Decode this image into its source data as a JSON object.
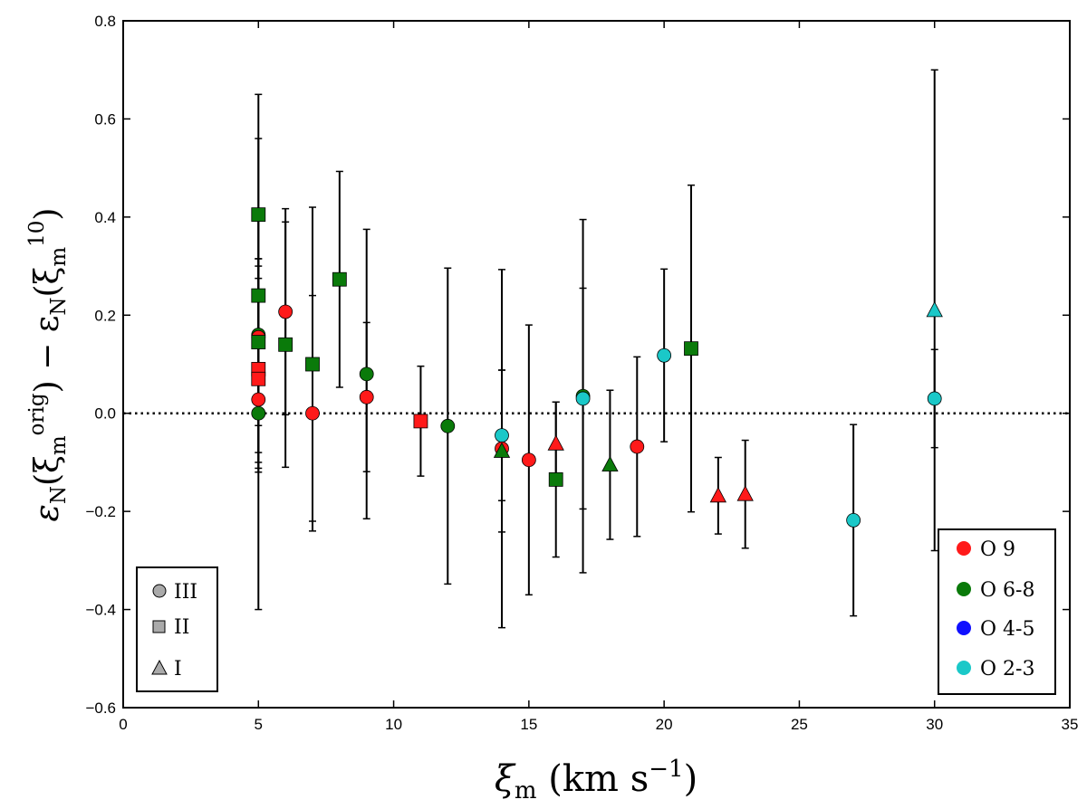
{
  "chart_data": {
    "type": "scatter",
    "title": "",
    "xlabel": {
      "base": "ξ",
      "sub": "m",
      "rest": " (km s",
      "sup": "−1",
      "close": ")"
    },
    "ylabel": {
      "a": "ε",
      "a_sub": "N",
      "b": "(ξ",
      "b_sub": "m",
      "b_sup": "orig",
      "c": ") − ε",
      "c_sub": "N",
      "d": "(ξ",
      "d_sub": "m",
      "d_sup": "10",
      "e": ")"
    },
    "xlim": [
      0,
      35
    ],
    "ylim": [
      -0.6,
      0.8
    ],
    "xticks": [
      0,
      5,
      10,
      15,
      20,
      25,
      30,
      35
    ],
    "yticks": [
      -0.6,
      -0.4,
      -0.2,
      0.0,
      0.2,
      0.4,
      0.6,
      0.8
    ],
    "xtick_labels": [
      "0",
      "5",
      "10",
      "15",
      "20",
      "25",
      "30",
      "35"
    ],
    "ytick_labels": [
      "−0.6",
      "−0.4",
      "−0.2",
      "0.0",
      "0.2",
      "0.4",
      "0.6",
      "0.8"
    ],
    "reference_line": {
      "y": 0.0,
      "style": "dotted"
    },
    "colors": {
      "O 9": "#ff1a1a",
      "O 6-8": "#0a7a0a",
      "O 4-5": "#1010ff",
      "O 2-3": "#1ac8c8"
    },
    "legend_spectral": {
      "position": "bottom-right",
      "entries": [
        "O 9",
        "O 6-8",
        "O 4-5",
        "O 2-3"
      ]
    },
    "legend_luminosity": {
      "position": "bottom-left",
      "entries": [
        {
          "label": "III",
          "marker": "circle"
        },
        {
          "label": "II",
          "marker": "square"
        },
        {
          "label": "I",
          "marker": "triangle"
        }
      ]
    },
    "points": [
      {
        "x": 5,
        "y": 0.405,
        "yerr": 0.245,
        "marker": "square",
        "cls": "O 6-8"
      },
      {
        "x": 5,
        "y": 0.24,
        "yerr": 0.32,
        "marker": "square",
        "cls": "O 6-8"
      },
      {
        "x": 5,
        "y": 0.16,
        "yerr": 0.155,
        "marker": "circle",
        "cls": "O 6-8"
      },
      {
        "x": 5,
        "y": 0.155,
        "yerr": 0.12,
        "marker": "circle",
        "cls": "O 9"
      },
      {
        "x": 5,
        "y": 0.145,
        "yerr": 0.17,
        "marker": "square",
        "cls": "O 6-8"
      },
      {
        "x": 5,
        "y": 0.09,
        "yerr": 0.21,
        "marker": "square",
        "cls": "O 9"
      },
      {
        "x": 5,
        "y": 0.07,
        "yerr": 0.17,
        "marker": "square",
        "cls": "O 9"
      },
      {
        "x": 5,
        "y": 0.028,
        "yerr": 0.14,
        "marker": "circle",
        "cls": "O 9"
      },
      {
        "x": 5,
        "y": 0.0,
        "yerr": 0.4,
        "marker": "circle",
        "cls": "O 6-8"
      },
      {
        "x": 6,
        "y": 0.207,
        "yerr": 0.21,
        "marker": "circle",
        "cls": "O 9"
      },
      {
        "x": 6,
        "y": 0.14,
        "yerr": 0.25,
        "marker": "square",
        "cls": "O 6-8"
      },
      {
        "x": 7,
        "y": 0.1,
        "yerr": 0.32,
        "marker": "square",
        "cls": "O 6-8"
      },
      {
        "x": 7,
        "y": 0.0,
        "yerr": 0.24,
        "marker": "circle",
        "cls": "O 9"
      },
      {
        "x": 8,
        "y": 0.273,
        "yerr": 0.22,
        "marker": "square",
        "cls": "O 6-8"
      },
      {
        "x": 9,
        "y": 0.08,
        "yerr": 0.295,
        "marker": "circle",
        "cls": "O 6-8"
      },
      {
        "x": 9,
        "y": 0.033,
        "yerr": 0.152,
        "marker": "circle",
        "cls": "O 9"
      },
      {
        "x": 11,
        "y": -0.016,
        "yerr": 0.112,
        "marker": "square",
        "cls": "O 9"
      },
      {
        "x": 12,
        "y": -0.026,
        "yerr": 0.322,
        "marker": "circle",
        "cls": "O 6-8"
      },
      {
        "x": 14,
        "y": -0.045,
        "yerr": 0.133,
        "marker": "circle",
        "cls": "O 2-3"
      },
      {
        "x": 14,
        "y": -0.072,
        "yerr": 0.365,
        "marker": "circle",
        "cls": "O 9"
      },
      {
        "x": 14,
        "y": -0.077,
        "yerr": 0.165,
        "marker": "triangle",
        "cls": "O 6-8"
      },
      {
        "x": 15,
        "y": -0.095,
        "yerr": 0.275,
        "marker": "circle",
        "cls": "O 9"
      },
      {
        "x": 16,
        "y": -0.062,
        "yerr": 0.085,
        "marker": "triangle",
        "cls": "O 9"
      },
      {
        "x": 16,
        "y": -0.135,
        "yerr": 0.158,
        "marker": "square",
        "cls": "O 6-8"
      },
      {
        "x": 17,
        "y": 0.035,
        "yerr": 0.36,
        "marker": "circle",
        "cls": "O 6-8"
      },
      {
        "x": 17,
        "y": 0.03,
        "yerr": 0.225,
        "marker": "circle",
        "cls": "O 2-3"
      },
      {
        "x": 18,
        "y": -0.105,
        "yerr": 0.152,
        "marker": "triangle",
        "cls": "O 6-8"
      },
      {
        "x": 19,
        "y": -0.068,
        "yerr": 0.183,
        "marker": "circle",
        "cls": "O 9"
      },
      {
        "x": 20,
        "y": 0.118,
        "yerr": 0.176,
        "marker": "circle",
        "cls": "O 2-3"
      },
      {
        "x": 21,
        "y": 0.132,
        "yerr": 0.333,
        "marker": "square",
        "cls": "O 6-8"
      },
      {
        "x": 22,
        "y": -0.168,
        "yerr": 0.078,
        "marker": "triangle",
        "cls": "O 9"
      },
      {
        "x": 23,
        "y": -0.165,
        "yerr": 0.11,
        "marker": "triangle",
        "cls": "O 9"
      },
      {
        "x": 27,
        "y": -0.218,
        "yerr": 0.195,
        "marker": "circle",
        "cls": "O 2-3"
      },
      {
        "x": 30,
        "y": 0.21,
        "yerr": 0.49,
        "marker": "triangle",
        "cls": "O 2-3"
      },
      {
        "x": 30,
        "y": 0.03,
        "yerr": 0.1,
        "marker": "circle",
        "cls": "O 2-3"
      }
    ]
  }
}
